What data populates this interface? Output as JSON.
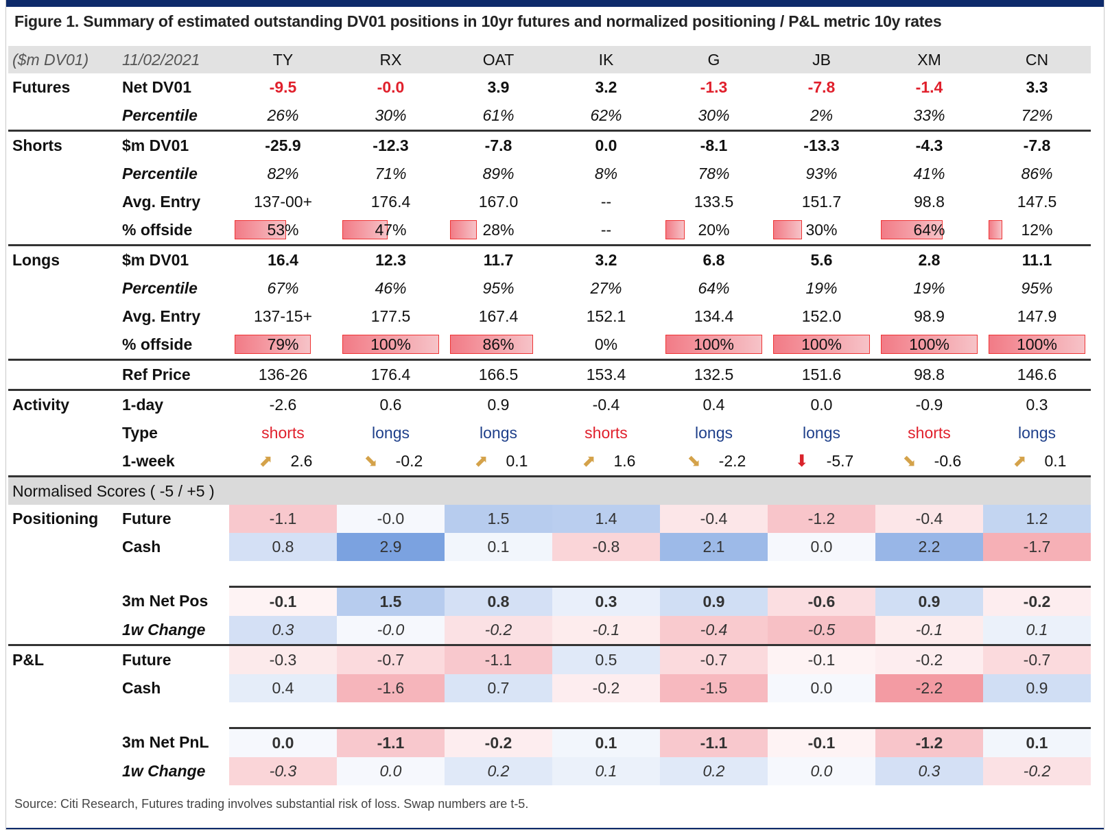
{
  "title": "Figure 1. Summary of estimated outstanding DV01 positions in 10yr futures and normalized positioning / P&L metric 10y rates",
  "source": "Source: Citi Research, Futures trading involves substantial risk of loss. Swap numbers are t-5.",
  "header": {
    "unit": "($m DV01)",
    "date": "11/02/2021",
    "columns": [
      "TY",
      "RX",
      "OAT",
      "IK",
      "G",
      "JB",
      "XM",
      "CN"
    ]
  },
  "groups": {
    "futures": "Futures",
    "shorts": "Shorts",
    "longs": "Longs",
    "activity": "Activity",
    "positioning": "Positioning",
    "pl": "P&L",
    "normalised": "Normalised Scores ( -5 / +5 )"
  },
  "labels": {
    "net_dv01": "Net DV01",
    "percentile": "Percentile",
    "sm_dv01": "$m DV01",
    "avg_entry": "Avg. Entry",
    "pct_offside": "% offside",
    "ref_price": "Ref Price",
    "one_day": "1-day",
    "type": "Type",
    "one_week": "1-week",
    "future": "Future",
    "cash": "Cash",
    "net_pos_3m": "3m Net Pos",
    "change_1w": "1w Change",
    "net_pnl_3m": "3m Net PnL"
  },
  "futures": {
    "net_dv01": [
      "-9.5",
      "-0.0",
      "3.9",
      "3.2",
      "-1.3",
      "-7.8",
      "-1.4",
      "3.3"
    ],
    "percentile": [
      "26%",
      "30%",
      "61%",
      "62%",
      "30%",
      "2%",
      "33%",
      "72%"
    ]
  },
  "shorts": {
    "dv01": [
      "-25.9",
      "-12.3",
      "-7.8",
      "0.0",
      "-8.1",
      "-13.3",
      "-4.3",
      "-7.8"
    ],
    "percentile": [
      "82%",
      "71%",
      "89%",
      "8%",
      "78%",
      "93%",
      "41%",
      "86%"
    ],
    "avg_entry": [
      "137-00+",
      "176.4",
      "167.0",
      "--",
      "133.5",
      "151.7",
      "98.8",
      "147.5"
    ],
    "offside_text": [
      "53%",
      "47%",
      "28%",
      "--",
      "20%",
      "30%",
      "64%",
      "12%"
    ],
    "offside_value": [
      0.53,
      0.47,
      0.28,
      0,
      0.2,
      0.3,
      0.64,
      0.12
    ]
  },
  "longs": {
    "dv01": [
      "16.4",
      "12.3",
      "11.7",
      "3.2",
      "6.8",
      "5.6",
      "2.8",
      "11.1"
    ],
    "percentile": [
      "67%",
      "46%",
      "95%",
      "27%",
      "64%",
      "19%",
      "19%",
      "95%"
    ],
    "avg_entry": [
      "137-15+",
      "177.5",
      "167.4",
      "152.1",
      "134.4",
      "152.0",
      "98.9",
      "147.9"
    ],
    "offside_text": [
      "79%",
      "100%",
      "86%",
      "0%",
      "100%",
      "100%",
      "100%",
      "100%"
    ],
    "offside_value": [
      0.79,
      1.0,
      0.86,
      0,
      1.0,
      1.0,
      1.0,
      1.0
    ]
  },
  "ref_price": [
    "136-26",
    "176.4",
    "166.5",
    "153.4",
    "132.5",
    "151.6",
    "98.8",
    "146.6"
  ],
  "activity": {
    "one_day": [
      "-2.6",
      "0.6",
      "0.9",
      "-0.4",
      "0.4",
      "0.0",
      "-0.9",
      "0.3"
    ],
    "type": [
      "shorts",
      "longs",
      "longs",
      "shorts",
      "longs",
      "longs",
      "shorts",
      "longs"
    ],
    "one_week": [
      "2.6",
      "-0.2",
      "0.1",
      "1.6",
      "-2.2",
      "-5.7",
      "-0.6",
      "0.1"
    ],
    "arrow_icons": [
      "arrow-up-right-icon",
      "arrow-down-right-icon",
      "arrow-up-right-icon",
      "arrow-up-right-icon",
      "arrow-down-right-icon",
      "arrow-down-icon",
      "arrow-down-right-icon",
      "arrow-up-right-icon"
    ]
  },
  "positioning": {
    "future": [
      "-1.1",
      "-0.0",
      "1.5",
      "1.4",
      "-0.4",
      "-1.2",
      "-0.4",
      "1.2"
    ],
    "cash": [
      "0.8",
      "2.9",
      "0.1",
      "-0.8",
      "2.1",
      "0.0",
      "2.2",
      "-1.7"
    ],
    "net_pos_3m": [
      "-0.1",
      "1.5",
      "0.8",
      "0.3",
      "0.9",
      "-0.6",
      "0.9",
      "-0.2"
    ],
    "change_1w": [
      "0.3",
      "-0.0",
      "-0.2",
      "-0.1",
      "-0.4",
      "-0.5",
      "-0.1",
      "0.1"
    ]
  },
  "pl": {
    "future": [
      "-0.3",
      "-0.7",
      "-1.1",
      "0.5",
      "-0.7",
      "-0.1",
      "-0.2",
      "-0.7"
    ],
    "cash": [
      "0.4",
      "-1.6",
      "0.7",
      "-0.2",
      "-1.5",
      "0.0",
      "-2.2",
      "0.9"
    ],
    "net_pnl_3m": [
      "0.0",
      "-1.1",
      "-0.2",
      "0.1",
      "-1.1",
      "-0.1",
      "-1.2",
      "0.1"
    ],
    "change_1w": [
      "-0.3",
      "0.0",
      "0.2",
      "0.1",
      "0.2",
      "0.0",
      "0.3",
      "-0.2"
    ]
  },
  "colors": {
    "header_bar": "#0e2b6b",
    "negative_text": "#e0202c",
    "shorts_type": "#e0202c",
    "longs_type": "#1e3f8a",
    "heat_positive": "#4a7fd4",
    "heat_negative": "#ea4f5e"
  }
}
